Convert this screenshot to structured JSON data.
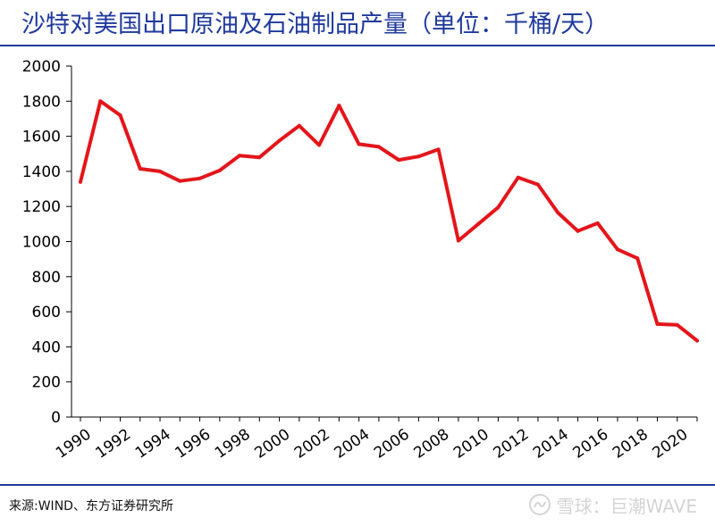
{
  "header": {
    "title": "沙特对美国出口原油及石油制品产量（单位：千桶/天）"
  },
  "footer": {
    "source": "来源:WIND、东方证券研究所",
    "watermark": "雪球：巨潮WAVE",
    "watermark_icon": "snowball-logo-icon"
  },
  "colors": {
    "title": "#1f3a9c",
    "line": "#e3161b",
    "rule": "#1f3a9c",
    "watermark": "#d4d4d4"
  },
  "chart_data": {
    "type": "line",
    "title": "沙特对美国出口原油及石油制品产量（单位：千桶/天）",
    "xlabel": "",
    "ylabel": "",
    "ylim": [
      0,
      2000
    ],
    "yticks": [
      0,
      200,
      400,
      600,
      800,
      1000,
      1200,
      1400,
      1600,
      1800,
      2000
    ],
    "xticks": [
      "1990",
      "1992",
      "1994",
      "1996",
      "1998",
      "2000",
      "2002",
      "2004",
      "2006",
      "2008",
      "2010",
      "2012",
      "2014",
      "2016",
      "2018",
      "2020"
    ],
    "grid": false,
    "legend": "none",
    "x": [
      1990,
      1991,
      1992,
      1993,
      1994,
      1995,
      1996,
      1997,
      1998,
      1999,
      2000,
      2001,
      2002,
      2003,
      2004,
      2005,
      2006,
      2007,
      2008,
      2009,
      2010,
      2011,
      2012,
      2013,
      2014,
      2015,
      2016,
      2017,
      2018,
      2019,
      2020,
      2021
    ],
    "series": [
      {
        "values": [
          1340,
          1800,
          1720,
          1415,
          1400,
          1345,
          1360,
          1405,
          1490,
          1480,
          1575,
          1660,
          1550,
          1775,
          1555,
          1540,
          1465,
          1485,
          1525,
          1005,
          1100,
          1195,
          1365,
          1325,
          1165,
          1060,
          1105,
          955,
          905,
          530,
          525,
          435
        ]
      }
    ]
  }
}
